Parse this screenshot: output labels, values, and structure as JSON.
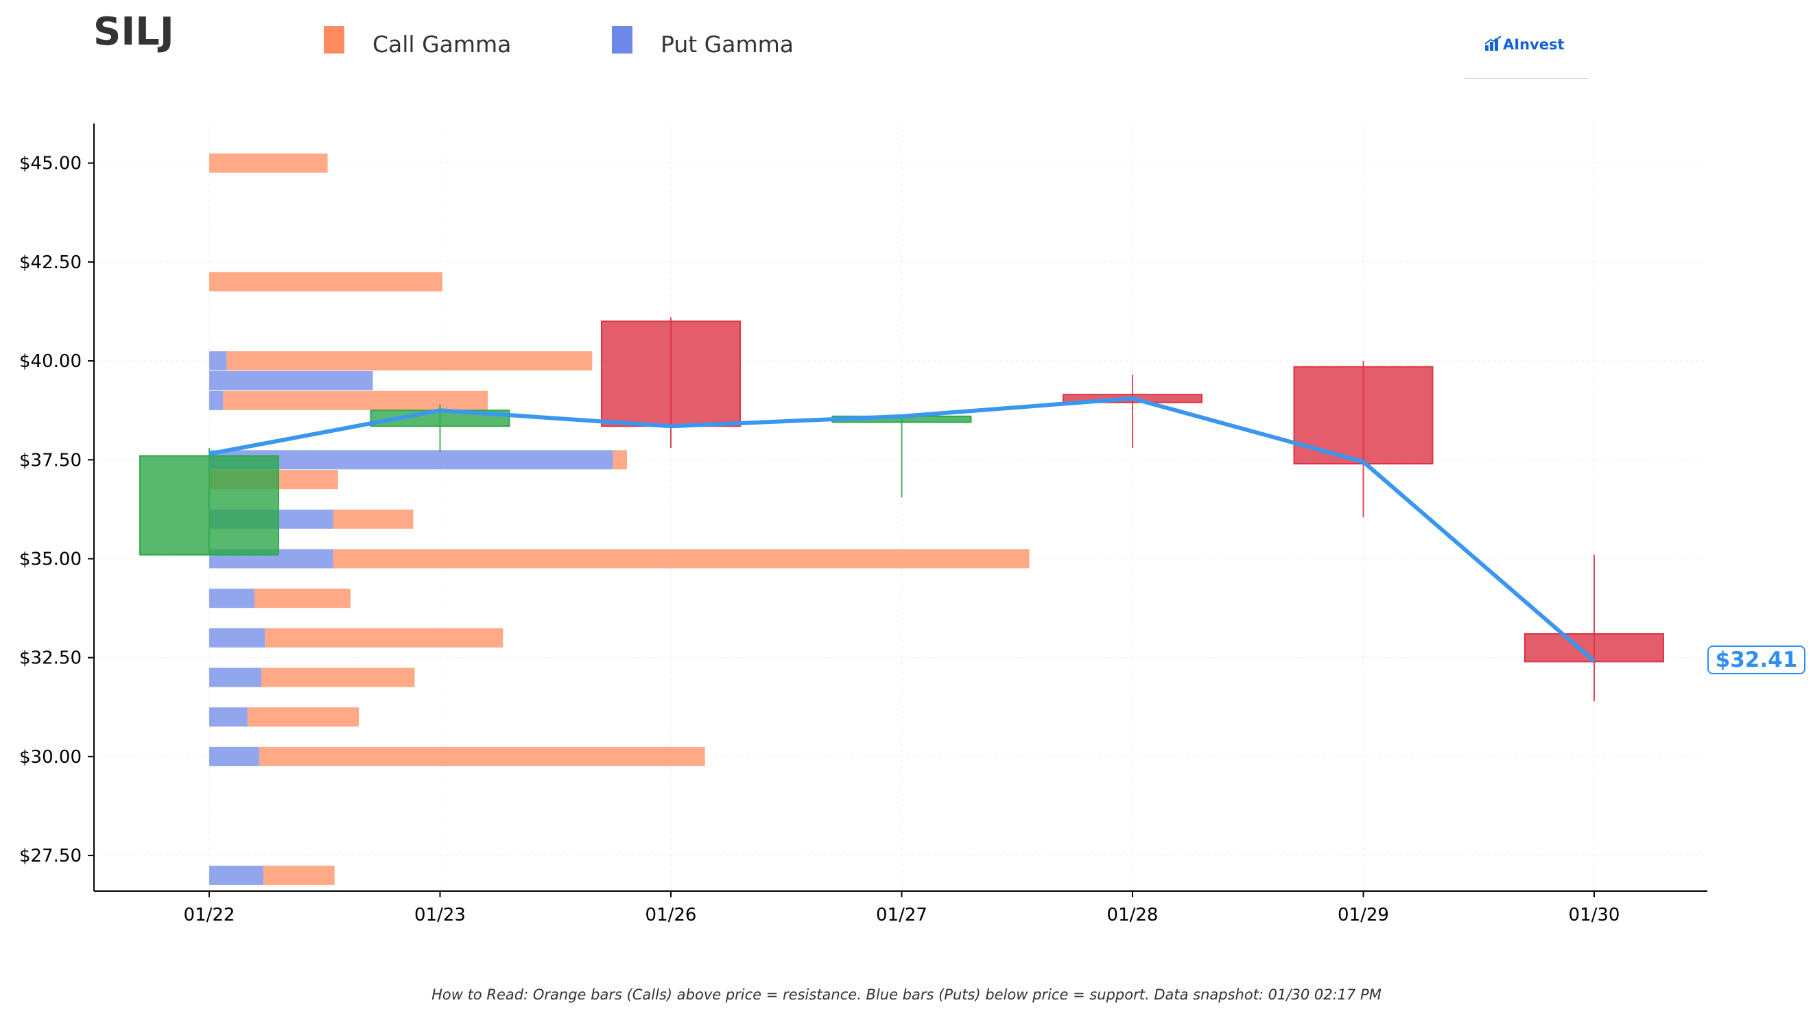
{
  "header": {
    "ticker": "SILJ",
    "logo_text": "AInvest"
  },
  "legend": [
    {
      "label": "Call Gamma",
      "color": "#ff8c5f"
    },
    {
      "label": "Put Gamma",
      "color": "#6d88e8"
    }
  ],
  "price_tag": "$32.41",
  "footer": "How to Read: Orange bars (Calls) above price = resistance. Blue bars (Puts) below price = support. Data snapshot: 01/30 02:17 PM",
  "colors": {
    "call": "#ff8c5f",
    "put": "#6d88e8",
    "up": "#2ea84a",
    "down": "#dc3545",
    "price_line": "#3a97f0"
  },
  "chart_data": {
    "type": "candlestick",
    "categories": [
      "01/22",
      "01/23",
      "01/26",
      "01/27",
      "01/28",
      "01/29",
      "01/30"
    ],
    "ylim": [
      26.6,
      46.0
    ],
    "yticks": [
      "$27.50",
      "$30.00",
      "$32.50",
      "$35.00",
      "$37.50",
      "$40.00",
      "$42.50",
      "$45.00"
    ],
    "ytick_values": [
      27.5,
      30.0,
      32.5,
      35.0,
      37.5,
      40.0,
      42.5,
      45.0
    ],
    "grid": true,
    "candles": [
      {
        "date": "01/22",
        "open": 35.1,
        "close": 37.6,
        "high": 37.8,
        "low": 35.1
      },
      {
        "date": "01/23",
        "open": 38.35,
        "close": 38.75,
        "high": 38.9,
        "low": 37.7
      },
      {
        "date": "01/26",
        "open": 41.0,
        "close": 38.35,
        "high": 41.1,
        "low": 37.8
      },
      {
        "date": "01/27",
        "open": 38.45,
        "close": 38.6,
        "high": 38.6,
        "low": 36.55
      },
      {
        "date": "01/28",
        "open": 39.15,
        "close": 38.95,
        "high": 39.65,
        "low": 37.8
      },
      {
        "date": "01/29",
        "open": 39.85,
        "close": 37.4,
        "high": 40.0,
        "low": 36.05
      },
      {
        "date": "01/30",
        "open": 33.1,
        "close": 32.4,
        "high": 35.1,
        "low": 31.4
      }
    ],
    "price_line": [
      37.65,
      38.75,
      38.35,
      38.6,
      39.05,
      37.45,
      32.41
    ],
    "gamma_bars": [
      {
        "strike": 45.0,
        "put": 0.0,
        "call": 1.7
      },
      {
        "strike": 42.0,
        "put": 0.0,
        "call": 3.35
      },
      {
        "strike": 40.0,
        "put": 0.25,
        "call": 5.25
      },
      {
        "strike": 39.5,
        "put": 2.35,
        "call": 0.0
      },
      {
        "strike": 39.0,
        "put": 0.2,
        "call": 3.8
      },
      {
        "strike": 37.5,
        "put": 5.8,
        "call": 0.2
      },
      {
        "strike": 37.0,
        "put": 0.0,
        "call": 1.85
      },
      {
        "strike": 36.0,
        "put": 1.78,
        "call": 1.15
      },
      {
        "strike": 35.0,
        "put": 1.78,
        "call": 10.0
      },
      {
        "strike": 34.0,
        "put": 0.65,
        "call": 1.38
      },
      {
        "strike": 33.0,
        "put": 0.8,
        "call": 3.42
      },
      {
        "strike": 32.0,
        "put": 0.75,
        "call": 2.2
      },
      {
        "strike": 31.0,
        "put": 0.55,
        "call": 1.6
      },
      {
        "strike": 30.0,
        "put": 0.72,
        "call": 6.4
      },
      {
        "strike": 27.0,
        "put": 0.78,
        "call": 1.02
      }
    ]
  }
}
